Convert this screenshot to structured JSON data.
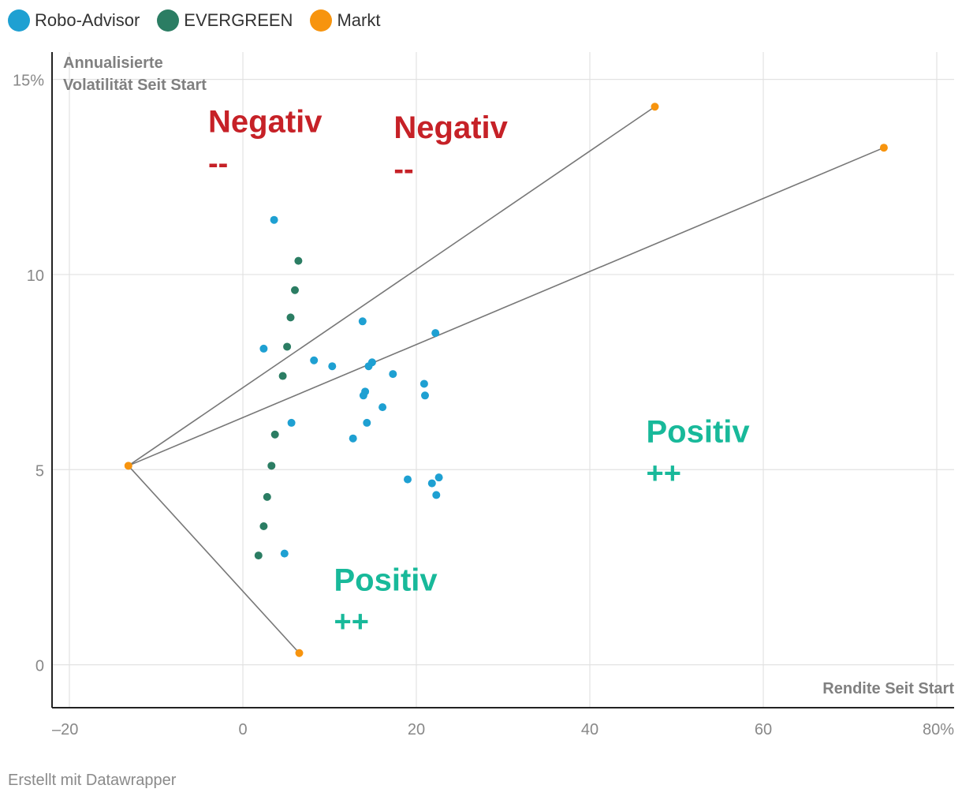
{
  "legend": [
    {
      "name": "Robo-Advisor",
      "color": "#1ea0d2"
    },
    {
      "name": "EVERGREEN",
      "color": "#2b7d63"
    },
    {
      "name": "Markt",
      "color": "#f7940e"
    }
  ],
  "footer": "Erstellt mit Datawrapper",
  "chart_data": {
    "type": "scatter",
    "xlabel": "Rendite Seit Start",
    "ylabel_lines": [
      "Annualisierte",
      "Volatilität Seit Start"
    ],
    "xlim": [
      -22,
      82
    ],
    "ylim": [
      -1.1,
      15.7
    ],
    "x_ticks": [
      -20,
      0,
      20,
      40,
      60,
      80
    ],
    "x_tick_labels": [
      "–20",
      "0",
      "20",
      "40",
      "60",
      "80%"
    ],
    "y_ticks": [
      0,
      5,
      10,
      15
    ],
    "y_tick_labels": [
      "0",
      "5",
      "10",
      "15%"
    ],
    "grid": true,
    "series": [
      {
        "name": "Robo-Advisor",
        "color": "#1ea0d2",
        "points": [
          [
            3.6,
            11.4
          ],
          [
            2.4,
            8.1
          ],
          [
            13.8,
            8.8
          ],
          [
            22.2,
            8.5
          ],
          [
            8.2,
            7.8
          ],
          [
            10.3,
            7.65
          ],
          [
            14.9,
            7.75
          ],
          [
            14.5,
            7.65
          ],
          [
            17.3,
            7.45
          ],
          [
            20.9,
            7.2
          ],
          [
            14.1,
            7.0
          ],
          [
            13.9,
            6.9
          ],
          [
            21.0,
            6.9
          ],
          [
            16.1,
            6.6
          ],
          [
            5.6,
            6.2
          ],
          [
            14.3,
            6.2
          ],
          [
            12.7,
            5.8
          ],
          [
            22.6,
            4.8
          ],
          [
            19.0,
            4.75
          ],
          [
            21.8,
            4.65
          ],
          [
            22.3,
            4.35
          ],
          [
            4.8,
            2.85
          ]
        ]
      },
      {
        "name": "EVERGREEN",
        "color": "#2b7d63",
        "points": [
          [
            6.4,
            10.35
          ],
          [
            6.0,
            9.6
          ],
          [
            5.5,
            8.9
          ],
          [
            5.1,
            8.15
          ],
          [
            4.6,
            7.4
          ],
          [
            3.7,
            5.9
          ],
          [
            3.3,
            5.1
          ],
          [
            2.8,
            4.3
          ],
          [
            2.4,
            3.55
          ],
          [
            1.8,
            2.8
          ]
        ]
      },
      {
        "name": "Markt",
        "color": "#f7940e",
        "points": [
          [
            -13.2,
            5.1
          ],
          [
            47.5,
            14.3
          ],
          [
            73.9,
            13.25
          ],
          [
            6.5,
            0.3
          ]
        ]
      }
    ],
    "lines": [
      {
        "from": [
          -13.2,
          5.1
        ],
        "to": [
          47.5,
          14.3
        ]
      },
      {
        "from": [
          -13.2,
          5.1
        ],
        "to": [
          73.9,
          13.25
        ]
      },
      {
        "from": [
          -13.2,
          5.1
        ],
        "to": [
          6.5,
          0.3
        ]
      }
    ],
    "annotations": [
      {
        "title": "Negativ",
        "sign": "--",
        "kind": "negative",
        "x": -4,
        "y": 13.65,
        "color": "#c62127"
      },
      {
        "title": "Negativ",
        "sign": "--",
        "kind": "negative",
        "x": 17.4,
        "y": 13.5,
        "color": "#c62127"
      },
      {
        "title": "Positiv",
        "sign": "++",
        "kind": "positive",
        "x": 46.5,
        "y": 5.7,
        "color": "#18b99a"
      },
      {
        "title": "Positiv",
        "sign": "++",
        "kind": "positive",
        "x": 10.5,
        "y": 1.9,
        "color": "#18b99a"
      }
    ]
  }
}
